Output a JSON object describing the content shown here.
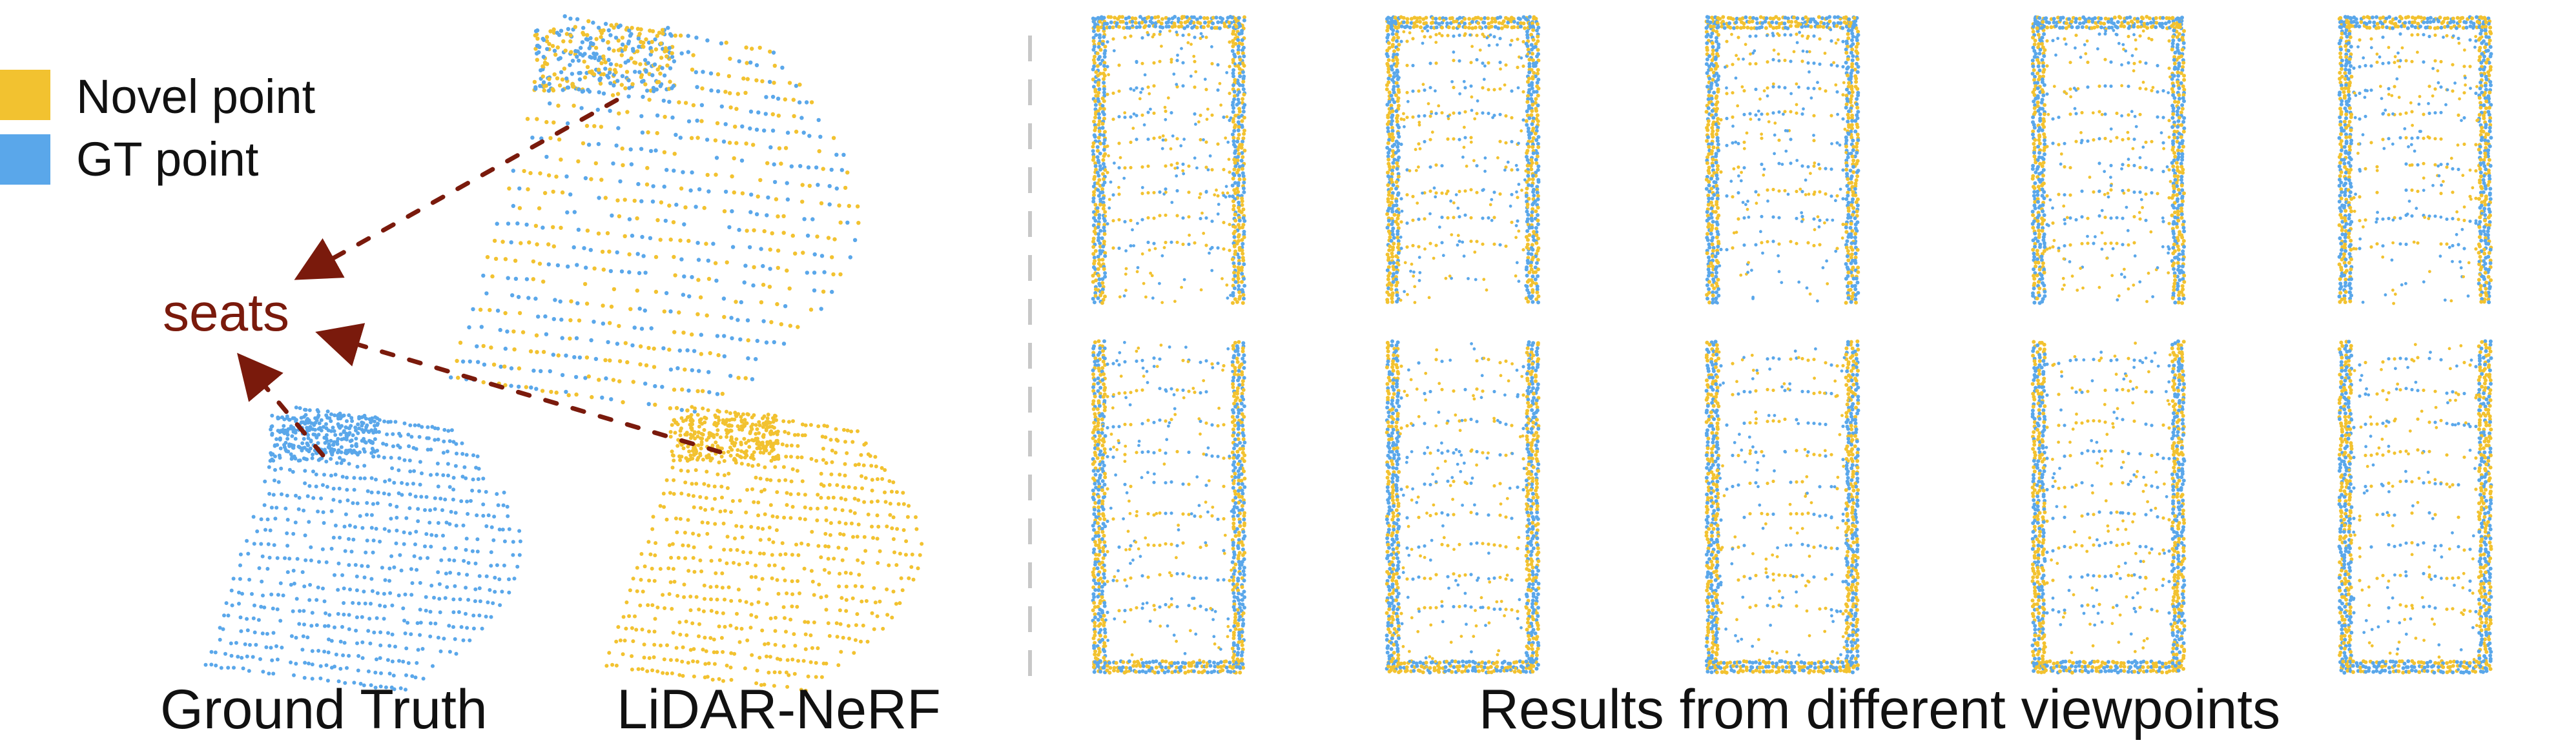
{
  "legend": {
    "items": [
      {
        "label": "Novel point",
        "color": "#f2c230"
      },
      {
        "label": "GT point",
        "color": "#5aa7ea"
      }
    ]
  },
  "annotation": {
    "label": "seats",
    "color": "#7a1a0c"
  },
  "captions": {
    "ground_truth": "Ground Truth",
    "lidar_nerf": "LiDAR-NeRF",
    "viewpoints": "Results from different viewpoints"
  },
  "colors": {
    "novel": "#f2c230",
    "gt": "#5aa7ea",
    "arrow": "#7a1a0c",
    "divider": "#c8c8c8"
  }
}
